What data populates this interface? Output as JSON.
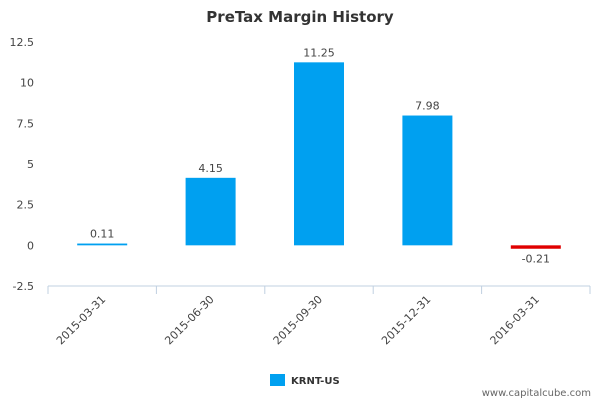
{
  "chart_data": {
    "type": "bar",
    "title": "PreTax Margin History",
    "categories": [
      "2015-03-31",
      "2015-06-30",
      "2015-09-30",
      "2015-12-31",
      "2016-03-31"
    ],
    "series": [
      {
        "name": "KRNT-US",
        "values": [
          0.11,
          4.15,
          11.25,
          7.98,
          -0.21
        ]
      }
    ],
    "data_labels": [
      "0.11",
      "4.15",
      "11.25",
      "7.98",
      "-0.21"
    ],
    "yticks": [
      "-2.5",
      "0",
      "2.5",
      "5",
      "7.5",
      "10",
      "12.5"
    ],
    "ylim": [
      -2.5,
      12.5
    ],
    "xlabel": "",
    "ylabel": "",
    "grid": false,
    "legend_position": "bottom",
    "colors": {
      "positive": "#00a0f0",
      "negative": "#e00000"
    }
  },
  "watermark": "www.capitalcube.com"
}
